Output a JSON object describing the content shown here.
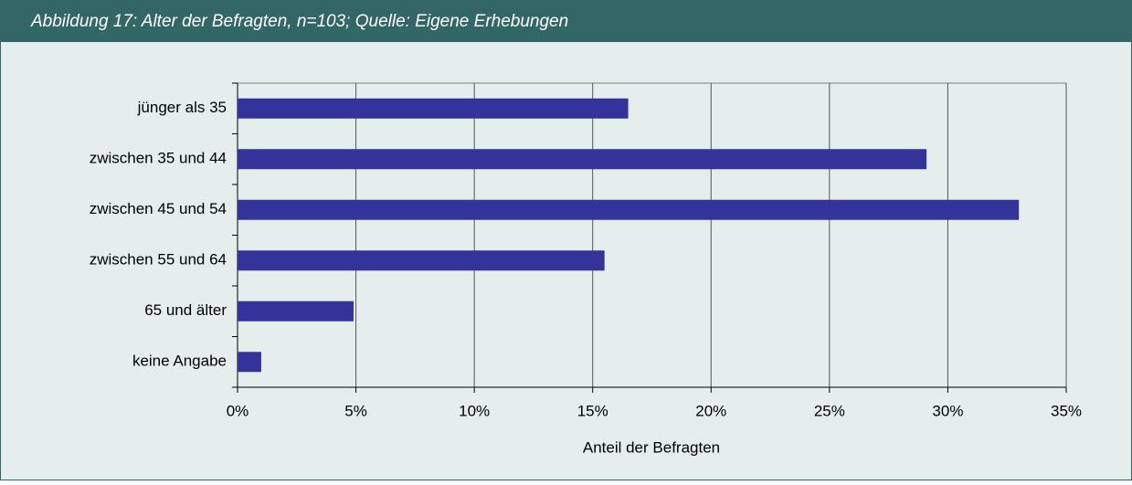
{
  "chart_data": {
    "type": "bar",
    "orientation": "horizontal",
    "title": "Abbildung 17: Alter der Befragten, n=103; Quelle: Eigene Erhebungen",
    "categories": [
      "jünger als 35",
      "zwischen 35 und 44",
      "zwischen 45 und 54",
      "zwischen 55 und 64",
      "65 und älter",
      "keine Angabe"
    ],
    "values": [
      16.5,
      29.1,
      33.0,
      15.5,
      4.9,
      1.0
    ],
    "color": "#333399",
    "xlabel": "Anteil der Befragten",
    "xlim": [
      0,
      35
    ],
    "xticks": [
      {
        "value": 0,
        "label": "0%"
      },
      {
        "value": 5,
        "label": "5%"
      },
      {
        "value": 10,
        "label": "10%"
      },
      {
        "value": 15,
        "label": "15%"
      },
      {
        "value": 20,
        "label": "20%"
      },
      {
        "value": 25,
        "label": "25%"
      },
      {
        "value": 30,
        "label": "30%"
      },
      {
        "value": 35,
        "label": "35%"
      }
    ],
    "grid": true
  }
}
